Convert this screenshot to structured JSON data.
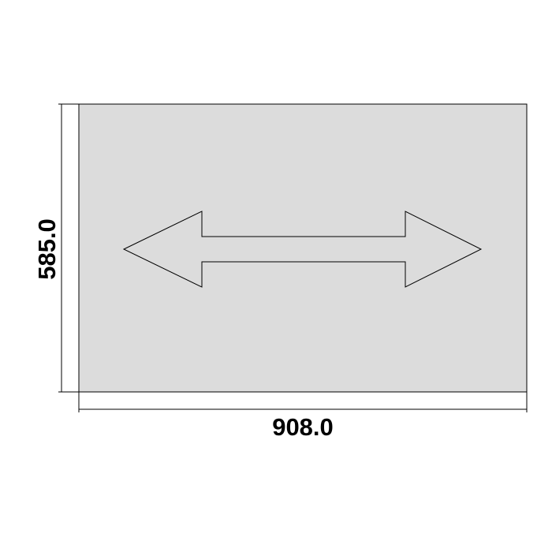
{
  "panel": {
    "fill_color": "#dcdcdc",
    "stroke_color": "#000000"
  },
  "arrow": {
    "icon": "double-headed-horizontal-arrow-icon",
    "fill_color": "#dcdcdc",
    "stroke_color": "#000000"
  },
  "dimensions": {
    "width_label": "908.0",
    "height_label": "585.0"
  }
}
